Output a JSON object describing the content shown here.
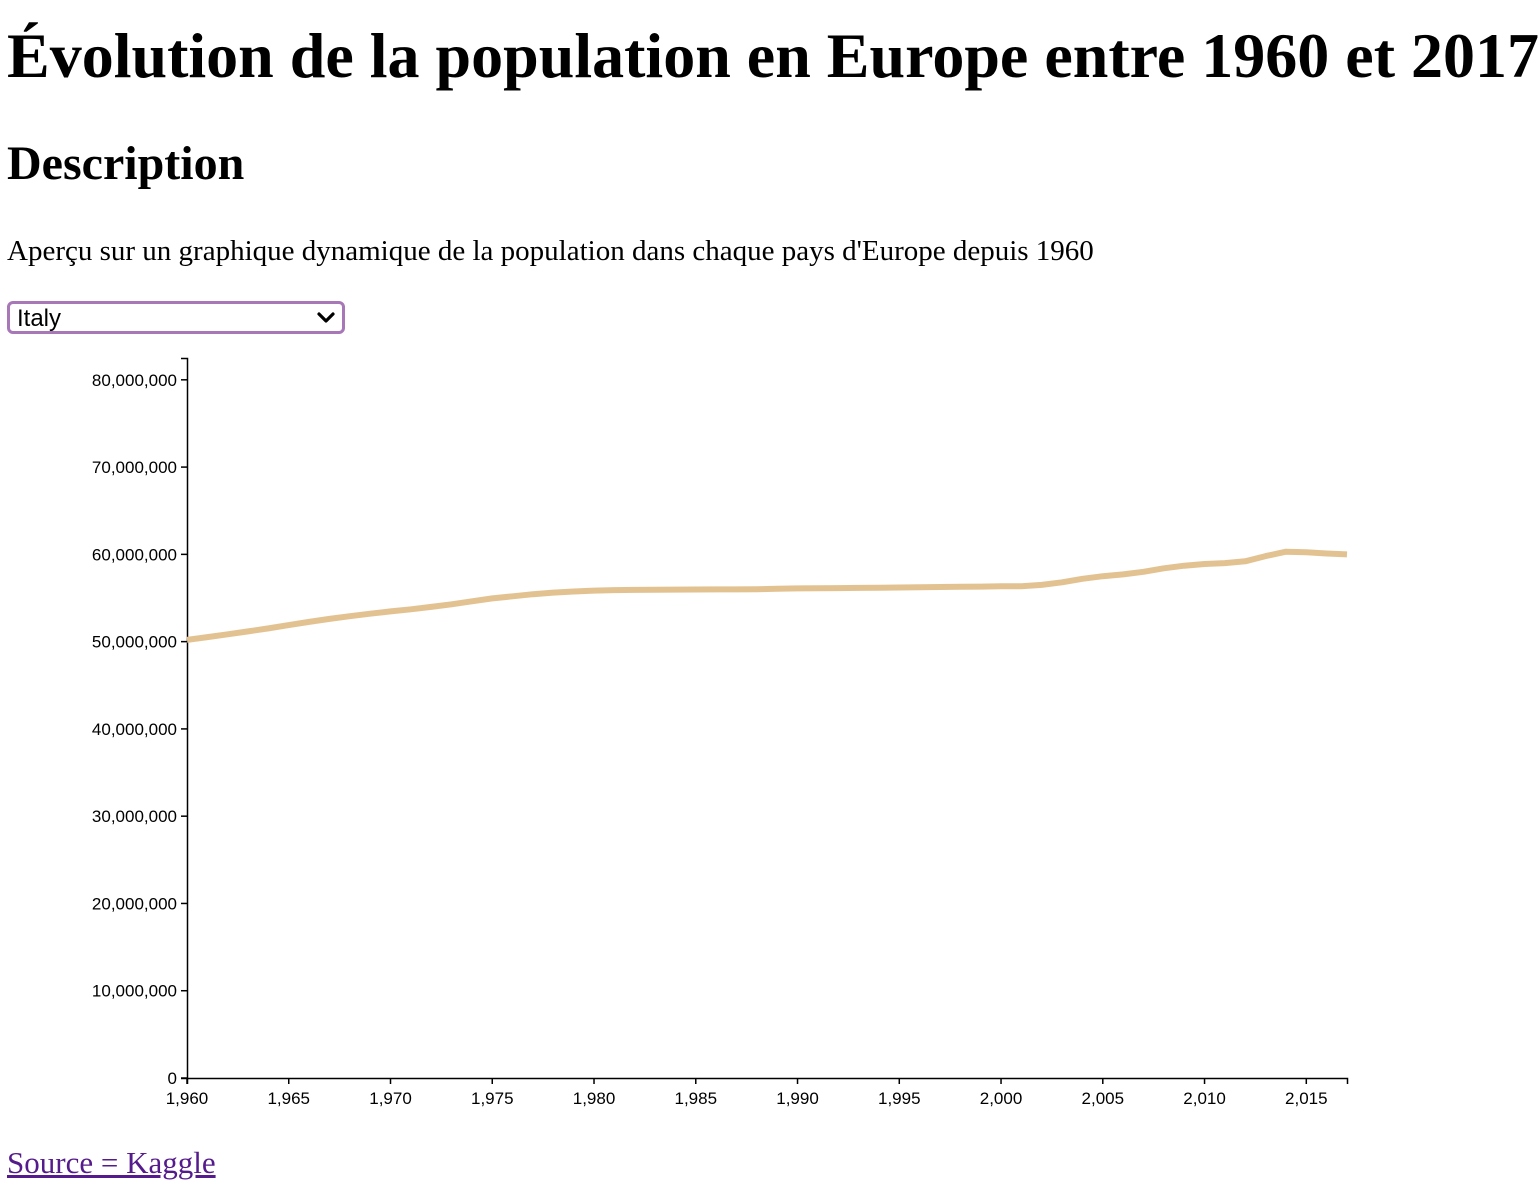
{
  "page": {
    "title": "Évolution de la population en Europe entre 1960 et 2017",
    "subtitle": "Description",
    "description": "Aperçu sur un graphique dynamique de la population dans chaque pays d'Europe depuis 1960",
    "selected_country": "Italy",
    "source_link": "Source = Kaggle"
  },
  "colors": {
    "line": "#e3c292",
    "select_border": "#a777b8",
    "link": "#551a8b"
  },
  "chart_data": {
    "type": "line",
    "title": "",
    "xlabel": "",
    "ylabel": "",
    "xlim": [
      1960,
      2017
    ],
    "ylim": [
      0,
      82500000
    ],
    "x_ticks": [
      1960,
      1965,
      1970,
      1975,
      1980,
      1985,
      1990,
      1995,
      2000,
      2005,
      2010,
      2015
    ],
    "x_tick_labels": [
      "1,960",
      "1,965",
      "1,970",
      "1,975",
      "1,980",
      "1,985",
      "1,990",
      "1,995",
      "2,000",
      "2,005",
      "2,010",
      "2,015"
    ],
    "y_ticks": [
      0,
      10000000,
      20000000,
      30000000,
      40000000,
      50000000,
      60000000,
      70000000,
      80000000
    ],
    "y_tick_labels": [
      "0",
      "10,000,000",
      "20,000,000",
      "30,000,000",
      "40,000,000",
      "50,000,000",
      "60,000,000",
      "70,000,000",
      "80,000,000"
    ],
    "grid": false,
    "legend": "none",
    "series": [
      {
        "x": [
          1960,
          1961,
          1962,
          1963,
          1964,
          1965,
          1966,
          1967,
          1968,
          1969,
          1970,
          1971,
          1972,
          1973,
          1974,
          1975,
          1976,
          1977,
          1978,
          1979,
          1980,
          1981,
          1982,
          1983,
          1984,
          1985,
          1986,
          1987,
          1988,
          1989,
          1990,
          1991,
          1992,
          1993,
          1994,
          1995,
          1996,
          1997,
          1998,
          1999,
          2000,
          2001,
          2002,
          2003,
          2004,
          2005,
          2006,
          2007,
          2008,
          2009,
          2010,
          2011,
          2012,
          2013,
          2014,
          2015,
          2016,
          2017
        ],
        "values": [
          50200000,
          50520000,
          50840000,
          51170000,
          51520000,
          51890000,
          52260000,
          52600000,
          52920000,
          53200000,
          53460000,
          53710000,
          53980000,
          54280000,
          54620000,
          54950000,
          55200000,
          55430000,
          55620000,
          55750000,
          55850000,
          55900000,
          55930000,
          55950000,
          55960000,
          55970000,
          55980000,
          55990000,
          56000000,
          56050000,
          56100000,
          56120000,
          56140000,
          56160000,
          56180000,
          56200000,
          56230000,
          56260000,
          56290000,
          56310000,
          56340000,
          56350000,
          56500000,
          56800000,
          57200000,
          57500000,
          57700000,
          58000000,
          58400000,
          58700000,
          58900000,
          59000000,
          59200000,
          59800000,
          60300000,
          60250000,
          60100000,
          60000000
        ]
      }
    ]
  }
}
